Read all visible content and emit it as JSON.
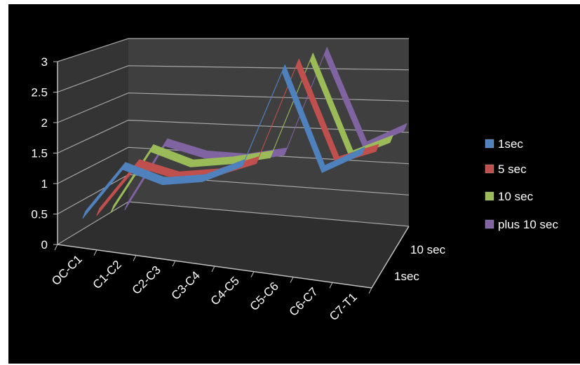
{
  "chart_data": {
    "type": "line",
    "title": "",
    "xlabel": "",
    "ylabel": "",
    "ylim": [
      0,
      3
    ],
    "yticks": [
      "0",
      "0.5",
      "1",
      "1.5",
      "2",
      "2.5",
      "3"
    ],
    "categories": [
      "OC-C1",
      "C1-C2",
      "C2-C3",
      "C3-C4",
      "C4-C5",
      "C5-C6",
      "C6-C7",
      "C7-T1"
    ],
    "depth_labels": [
      "1sec",
      "10 sec"
    ],
    "grid": true,
    "legend_position": "right",
    "series": [
      {
        "name": "1sec",
        "color": "#4f81bd",
        "values": [
          0.5,
          1.3,
          1.05,
          1.1,
          1.35,
          2.9,
          1.25,
          1.55
        ]
      },
      {
        "name": "5 sec",
        "color": "#c0504d",
        "values": [
          0.5,
          1.3,
          1.1,
          1.15,
          1.35,
          2.95,
          1.35,
          1.55
        ]
      },
      {
        "name": "10 sec",
        "color": "#9bbb59",
        "values": [
          0.5,
          1.5,
          1.25,
          1.3,
          1.4,
          3.0,
          1.4,
          1.65
        ]
      },
      {
        "name": "plus 10 sec",
        "color": "#8064a2",
        "values": [
          0.5,
          1.55,
          1.35,
          1.3,
          1.4,
          3.05,
          1.5,
          1.8
        ]
      }
    ]
  }
}
